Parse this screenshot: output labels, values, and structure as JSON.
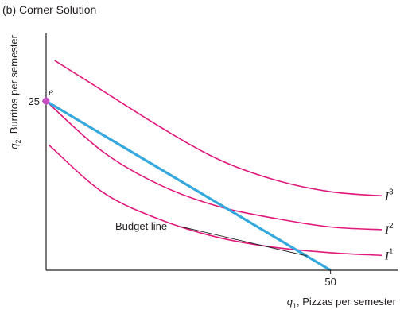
{
  "chart_data": {
    "type": "line",
    "title": "(b) Corner Solution",
    "xlabel": {
      "base": "q",
      "sub": "1",
      "rest": ", Pizzas per semester"
    },
    "ylabel": {
      "base": "q",
      "sub": "2",
      "rest": ", Burritos per semester"
    },
    "xlim": [
      0,
      59
    ],
    "ylim": [
      0,
      35
    ],
    "x_ticks": [
      {
        "value": 50,
        "label": "50"
      }
    ],
    "y_ticks": [
      {
        "value": 25,
        "label": "25"
      }
    ],
    "colors": {
      "budget": "#35a8de",
      "indifference": "#e0197d",
      "axis": "#231f20",
      "point": "#c44fc3"
    },
    "budget_line": {
      "label": "Budget line",
      "points": [
        [
          0,
          25
        ],
        [
          50,
          0
        ]
      ],
      "label_anchor": [
        45.9,
        2.1
      ]
    },
    "indifference_curves": [
      {
        "name": "I",
        "sup": "1",
        "points": [
          [
            0.5,
            18.5
          ],
          [
            10,
            11.5
          ],
          [
            20,
            7.5
          ],
          [
            30,
            4.9
          ],
          [
            40,
            3.4
          ],
          [
            50,
            2.6
          ],
          [
            59,
            2.2
          ]
        ]
      },
      {
        "name": "I",
        "sup": "2",
        "points": [
          [
            0,
            25
          ],
          [
            10,
            17.5
          ],
          [
            20,
            12.6
          ],
          [
            30,
            9.5
          ],
          [
            40,
            7.7
          ],
          [
            50,
            6.4
          ],
          [
            59,
            6
          ]
        ]
      },
      {
        "name": "I",
        "sup": "3",
        "points": [
          [
            1.5,
            31
          ],
          [
            10,
            26.5
          ],
          [
            20,
            21.2
          ],
          [
            30,
            16.5
          ],
          [
            40,
            13.4
          ],
          [
            50,
            11.6
          ],
          [
            59,
            11
          ]
        ]
      }
    ],
    "points": [
      {
        "label": "e",
        "x": 0,
        "y": 25
      }
    ]
  }
}
